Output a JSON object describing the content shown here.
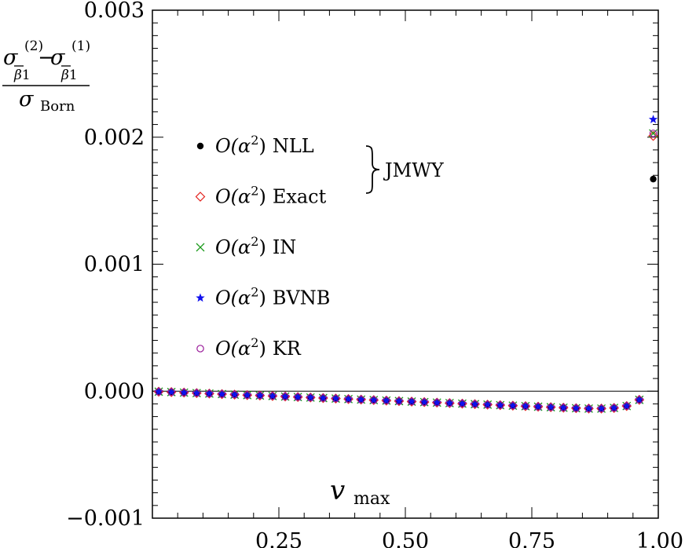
{
  "chart_data": {
    "type": "scatter",
    "xlabel": "v",
    "xlabel_sub": "max",
    "ylabel": {
      "num_left_sym": "σ",
      "num_left_sup": "(2)",
      "num_left_sub": "β",
      "num_left_sub_idx": "1",
      "minus": "−",
      "num_right_sym": "σ",
      "num_right_sup": "(1)",
      "num_right_sub": "β",
      "num_right_sub_idx": "1",
      "den_sym": "σ",
      "den_sub": "Born"
    },
    "xlim": [
      0.0,
      1.0
    ],
    "ylim": [
      -0.001,
      0.003
    ],
    "x_ticks": [
      {
        "value": 0.25,
        "label": "0.25"
      },
      {
        "value": 0.5,
        "label": "0.50"
      },
      {
        "value": 0.75,
        "label": "0.75"
      },
      {
        "value": 1.0,
        "label": "1.00"
      }
    ],
    "y_ticks": [
      {
        "value": -0.001,
        "label": "−0.001"
      },
      {
        "value": 0.0,
        "label": "0.000"
      },
      {
        "value": 0.001,
        "label": "0.001"
      },
      {
        "value": 0.002,
        "label": "0.002"
      },
      {
        "value": 0.003,
        "label": "0.003"
      }
    ],
    "zero_line": true,
    "legend_placement": "left",
    "legend_group_label": "JMWY",
    "series": [
      {
        "name": "NLL",
        "prefix": "O(α",
        "sup": "2",
        "suffix": ")",
        "marker": "dot",
        "color": "#000000"
      },
      {
        "name": "Exact",
        "prefix": "O(α",
        "sup": "2",
        "suffix": ")",
        "marker": "diamond",
        "color": "#e3211c"
      },
      {
        "name": "IN",
        "prefix": "O(α",
        "sup": "2",
        "suffix": ")",
        "marker": "cross",
        "color": "#1a9a1a"
      },
      {
        "name": "BVNB",
        "prefix": "O(α",
        "sup": "2",
        "suffix": ")",
        "marker": "star",
        "color": "#1010ee"
      },
      {
        "name": "KR",
        "prefix": "O(α",
        "sup": "2",
        "suffix": ")",
        "marker": "circle",
        "color": "#9a1a9a"
      }
    ],
    "x": [
      0.0125,
      0.0375,
      0.0625,
      0.0875,
      0.1125,
      0.1375,
      0.1625,
      0.1875,
      0.2125,
      0.2375,
      0.2625,
      0.2875,
      0.3125,
      0.3375,
      0.3625,
      0.3875,
      0.4125,
      0.4375,
      0.4625,
      0.4875,
      0.5125,
      0.5375,
      0.5625,
      0.5875,
      0.6125,
      0.6375,
      0.6625,
      0.6875,
      0.7125,
      0.7375,
      0.7625,
      0.7875,
      0.8125,
      0.8375,
      0.8625,
      0.8875,
      0.9125,
      0.9375,
      0.9625
    ],
    "y": [
      -4e-06,
      -7e-06,
      -1.1e-05,
      -1.5e-05,
      -1.9e-05,
      -2.3e-05,
      -2.7e-05,
      -3.1e-05,
      -3.4e-05,
      -3.8e-05,
      -4.2e-05,
      -4.6e-05,
      -5e-05,
      -5.4e-05,
      -5.8e-05,
      -6.2e-05,
      -6.6e-05,
      -7e-05,
      -7.4e-05,
      -7.8e-05,
      -8.2e-05,
      -8.6e-05,
      -9e-05,
      -9.4e-05,
      -9.8e-05,
      -0.000102,
      -0.000106,
      -0.00011,
      -0.000114,
      -0.000118,
      -0.000122,
      -0.000126,
      -0.00013,
      -0.000134,
      -0.000137,
      -0.000137,
      -0.000132,
      -0.000117,
      -6.8e-05
    ],
    "endpoint": {
      "x": 0.99,
      "NLL": 0.00167,
      "Exact": 0.00201,
      "IN": 0.00203,
      "BVNB": 0.00214,
      "KR": 0.00203
    }
  }
}
